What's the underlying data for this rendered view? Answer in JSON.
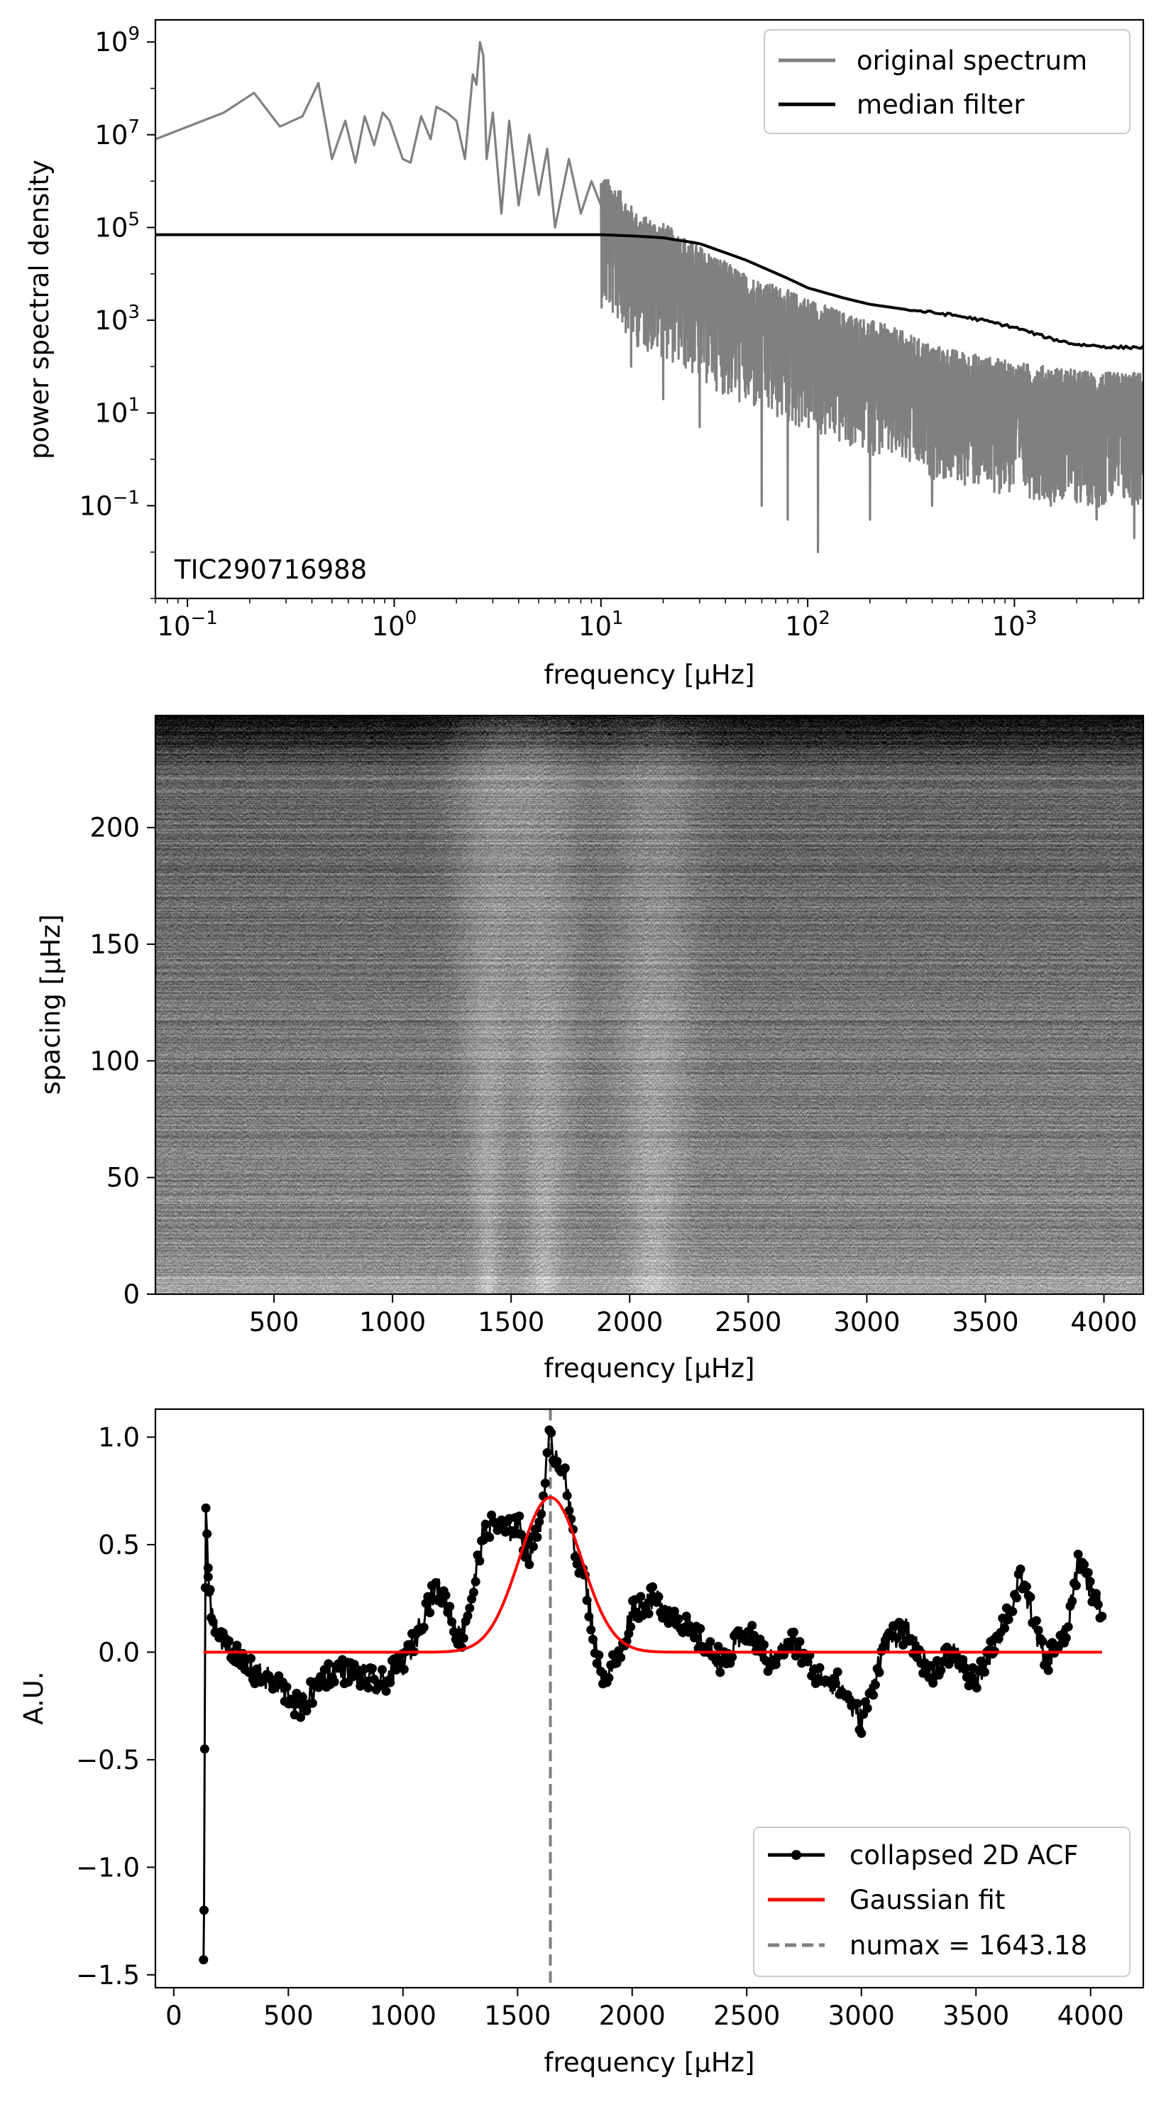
{
  "chart_data": [
    {
      "type": "line",
      "xlabel": "frequency [µHz]",
      "ylabel": "power spectral density",
      "xscale": "log",
      "yscale": "log",
      "xlim": [
        0.07,
        4200
      ],
      "ylim": [
        0.001,
        3000000000
      ],
      "xticks": [
        0.1,
        1,
        10,
        100,
        1000
      ],
      "xtick_labels": [
        [
          "10",
          "−1"
        ],
        [
          "10",
          "0"
        ],
        [
          "10",
          "1"
        ],
        [
          "10",
          "2"
        ],
        [
          "10",
          "3"
        ]
      ],
      "yticks": [
        0.1,
        10,
        1000,
        100000,
        10000000,
        1000000000
      ],
      "ytick_labels": [
        [
          "10",
          "−1"
        ],
        [
          "10",
          "1"
        ],
        [
          "10",
          "3"
        ],
        [
          "10",
          "5"
        ],
        [
          "10",
          "7"
        ],
        [
          "10",
          "9"
        ]
      ],
      "annotation": "TIC290716988",
      "legend_position": "upper right",
      "series": [
        {
          "name": "original spectrum",
          "color": "#808080",
          "x": [
            0.07,
            0.15,
            0.21,
            0.28,
            0.36,
            0.43,
            0.5,
            0.58,
            0.65,
            0.72,
            0.8,
            0.88,
            0.95,
            1.1,
            1.2,
            1.35,
            1.5,
            1.6,
            1.8,
            2.0,
            2.2,
            2.4,
            2.5,
            2.6,
            2.7,
            2.8,
            3.0,
            3.3,
            3.6,
            4.0,
            4.5,
            5.0,
            5.5,
            6.0,
            7.0,
            8.0,
            9.0,
            10.0,
            12,
            15,
            20,
            30,
            50,
            80,
            112,
            150,
            250,
            400,
            600,
            1000,
            1500,
            2500,
            4000
          ],
          "y": [
            8000000,
            30000000,
            80000000,
            15000000,
            25000000,
            130000000,
            3000000,
            20000000,
            2500000,
            25000000,
            6000000,
            30000000,
            20000000,
            3000000,
            2500000,
            25000000,
            8000000,
            40000000,
            30000000,
            20000000,
            3000000,
            200000000,
            120000000,
            1000000000,
            500000000,
            3000000,
            30000000,
            200000,
            20000000,
            300000,
            10000000,
            500000,
            5000000,
            100000,
            3000000,
            200000,
            1000000,
            300000,
            150000,
            40000,
            25000,
            8000,
            2000,
            900,
            500,
            300,
            150,
            60,
            40,
            25,
            20,
            15,
            15
          ],
          "noise_decades": 2.2,
          "dips": [
            [
              112,
              0.01
            ],
            [
              60,
              0.1
            ],
            [
              80,
              0.05
            ],
            [
              200,
              0.05
            ],
            [
              400,
              0.1
            ],
            [
              800,
              0.2
            ],
            [
              1500,
              0.1
            ],
            [
              2500,
              0.05
            ],
            [
              3800,
              0.02
            ],
            [
              30,
              5
            ],
            [
              20,
              20
            ],
            [
              14,
              100
            ]
          ]
        },
        {
          "name": "median filter",
          "color": "#000000",
          "x": [
            0.07,
            1,
            10,
            15,
            20,
            30,
            50,
            80,
            100,
            150,
            200,
            300,
            500,
            700,
            1000,
            1500,
            2000,
            2500,
            3000,
            4200
          ],
          "y": [
            70000,
            70000,
            70000,
            65000,
            60000,
            45000,
            20000,
            8000,
            5000,
            3000,
            2200,
            1700,
            1300,
            1000,
            700,
            400,
            300,
            280,
            260,
            260
          ]
        }
      ]
    },
    {
      "type": "heatmap",
      "xlabel": "frequency [µHz]",
      "ylabel": "spacing [µHz]",
      "xlim": [
        0,
        4166
      ],
      "ylim": [
        0,
        248
      ],
      "xticks": [
        500,
        1000,
        1500,
        2000,
        2500,
        3000,
        3500,
        4000
      ],
      "xtick_labels": [
        "500",
        "1000",
        "1500",
        "2000",
        "2500",
        "3000",
        "3500",
        "4000"
      ],
      "yticks": [
        0,
        50,
        100,
        150,
        200
      ],
      "ytick_labels": [
        "0",
        "50",
        "100",
        "150",
        "200"
      ],
      "colormap": "gray",
      "bright_ridges": [
        [
          1640,
          60
        ],
        [
          1400,
          40
        ],
        [
          2100,
          90
        ]
      ]
    },
    {
      "type": "line",
      "xlabel": "frequency [µHz]",
      "ylabel": "A.U.",
      "xlim": [
        -80,
        4230
      ],
      "ylim": [
        -1.56,
        1.13
      ],
      "xticks": [
        0,
        500,
        1000,
        1500,
        2000,
        2500,
        3000,
        3500,
        4000
      ],
      "xtick_labels": [
        "0",
        "500",
        "1000",
        "1500",
        "2000",
        "2500",
        "3000",
        "3500",
        "4000"
      ],
      "yticks": [
        -1.5,
        -1.0,
        -0.5,
        0.0,
        0.5,
        1.0
      ],
      "ytick_labels": [
        "−1.5",
        "−1.0",
        "−0.5",
        "0.0",
        "0.5",
        "1.0"
      ],
      "legend_position": "lower right",
      "series": [
        {
          "name": "collapsed 2D ACF",
          "color": "#000000",
          "x": [
            130,
            132,
            135,
            138,
            140,
            145,
            150,
            170,
            200,
            250,
            300,
            350,
            400,
            450,
            500,
            550,
            580,
            650,
            700,
            800,
            900,
            950,
            1000,
            1050,
            1100,
            1150,
            1200,
            1250,
            1300,
            1350,
            1400,
            1450,
            1500,
            1550,
            1600,
            1640,
            1650,
            1700,
            1750,
            1800,
            1850,
            1880,
            1950,
            2000,
            2100,
            2200,
            2300,
            2400,
            2500,
            2600,
            2700,
            2800,
            2900,
            3000,
            3050,
            3100,
            3200,
            3300,
            3400,
            3500,
            3600,
            3650,
            3700,
            3800,
            3900,
            3950,
            4000,
            4050
          ],
          "y": [
            -1.43,
            -1.2,
            -0.45,
            0.3,
            0.67,
            0.55,
            0.35,
            0.15,
            0.05,
            0.02,
            -0.05,
            -0.1,
            -0.12,
            -0.15,
            -0.2,
            -0.27,
            -0.22,
            -0.12,
            -0.08,
            -0.1,
            -0.15,
            -0.1,
            -0.05,
            0.05,
            0.2,
            0.3,
            0.2,
            0.05,
            0.25,
            0.55,
            0.6,
            0.55,
            0.6,
            0.45,
            0.6,
            1.0,
            0.95,
            0.85,
            0.5,
            0.3,
            -0.05,
            -0.12,
            0.0,
            0.2,
            0.25,
            0.15,
            0.05,
            -0.05,
            0.1,
            -0.05,
            0.05,
            -0.1,
            -0.15,
            -0.32,
            -0.15,
            0.05,
            0.1,
            -0.1,
            0.0,
            -0.15,
            0.1,
            0.2,
            0.35,
            -0.05,
            0.1,
            0.45,
            0.3,
            0.2
          ]
        },
        {
          "name": "Gaussian fit",
          "color": "#ff0000",
          "amplitude": 0.72,
          "mean": 1643.18,
          "sigma": 135,
          "x_range": [
            130,
            4050
          ]
        },
        {
          "name": "numax = 1643.18",
          "color": "#808080",
          "x": 1643.18
        }
      ]
    }
  ]
}
